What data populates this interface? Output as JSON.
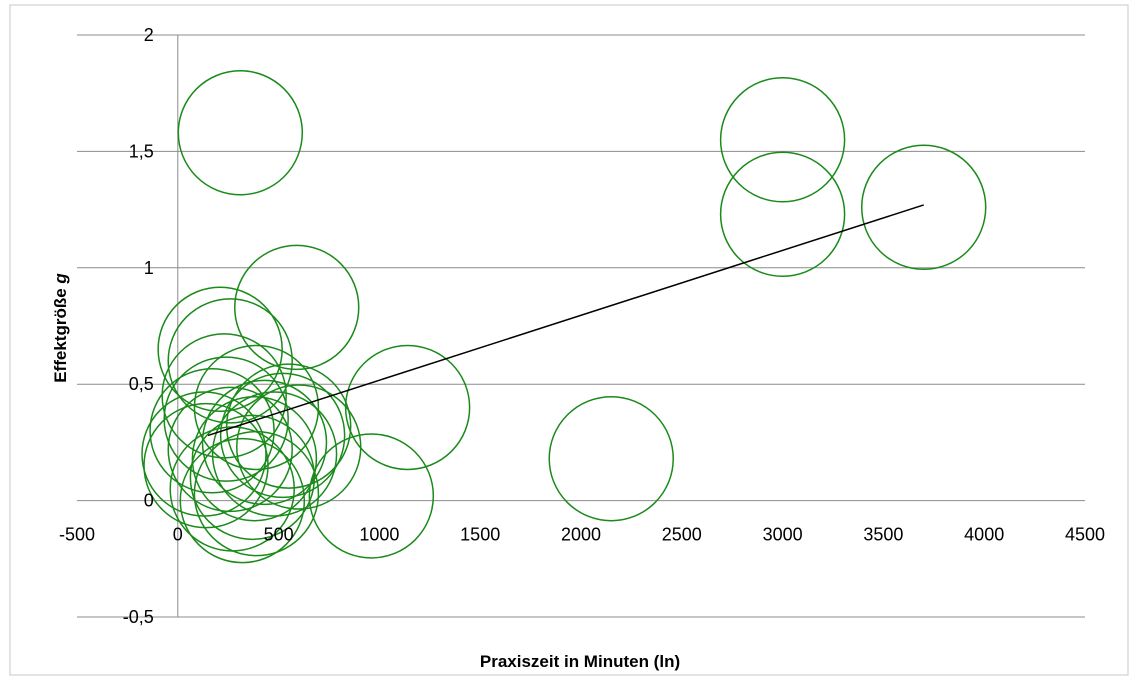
{
  "chart_data": {
    "type": "bubble",
    "xlabel": "Praxiszeit in Minuten (ln)",
    "ylabel_main": "Effektgröße ",
    "ylabel_italic": "g",
    "xlim": [
      -500,
      4500
    ],
    "ylim": [
      -0.5,
      2
    ],
    "x_ticks": [
      -500,
      0,
      500,
      1000,
      1500,
      2000,
      2500,
      3000,
      3500,
      4000,
      4500
    ],
    "x_tick_labels": [
      "-500",
      "0",
      "500",
      "1000",
      "1500",
      "2000",
      "2500",
      "3000",
      "3500",
      "4000",
      "4500"
    ],
    "y_ticks": [
      -0.5,
      0,
      0.5,
      1,
      1.5,
      2
    ],
    "y_tick_labels": [
      "-0,5",
      "0",
      "0,5",
      "1",
      "1,5",
      "2"
    ],
    "grid": "horizontal",
    "bubble_color": "#1a8a1a",
    "trendline_color": "#000000",
    "points": [
      {
        "x": 310,
        "y": 1.58
      },
      {
        "x": 3000,
        "y": 1.55
      },
      {
        "x": 3000,
        "y": 1.23
      },
      {
        "x": 3700,
        "y": 1.26
      },
      {
        "x": 590,
        "y": 0.83
      },
      {
        "x": 210,
        "y": 0.65
      },
      {
        "x": 260,
        "y": 0.6
      },
      {
        "x": 230,
        "y": 0.45
      },
      {
        "x": 390,
        "y": 0.4
      },
      {
        "x": 1140,
        "y": 0.4
      },
      {
        "x": 170,
        "y": 0.3
      },
      {
        "x": 240,
        "y": 0.35
      },
      {
        "x": 550,
        "y": 0.32
      },
      {
        "x": 520,
        "y": 0.28
      },
      {
        "x": 130,
        "y": 0.2
      },
      {
        "x": 140,
        "y": 0.15
      },
      {
        "x": 260,
        "y": 0.22
      },
      {
        "x": 380,
        "y": 0.18
      },
      {
        "x": 430,
        "y": 0.25
      },
      {
        "x": 480,
        "y": 0.2
      },
      {
        "x": 600,
        "y": 0.23
      },
      {
        "x": 270,
        "y": 0.05
      },
      {
        "x": 370,
        "y": 0.1
      },
      {
        "x": 390,
        "y": 0.03
      },
      {
        "x": 320,
        "y": 0.0
      },
      {
        "x": 960,
        "y": 0.02
      },
      {
        "x": 2150,
        "y": 0.18
      }
    ],
    "trendline": {
      "x": [
        150,
        3700
      ],
      "y": [
        0.28,
        1.27
      ]
    }
  }
}
